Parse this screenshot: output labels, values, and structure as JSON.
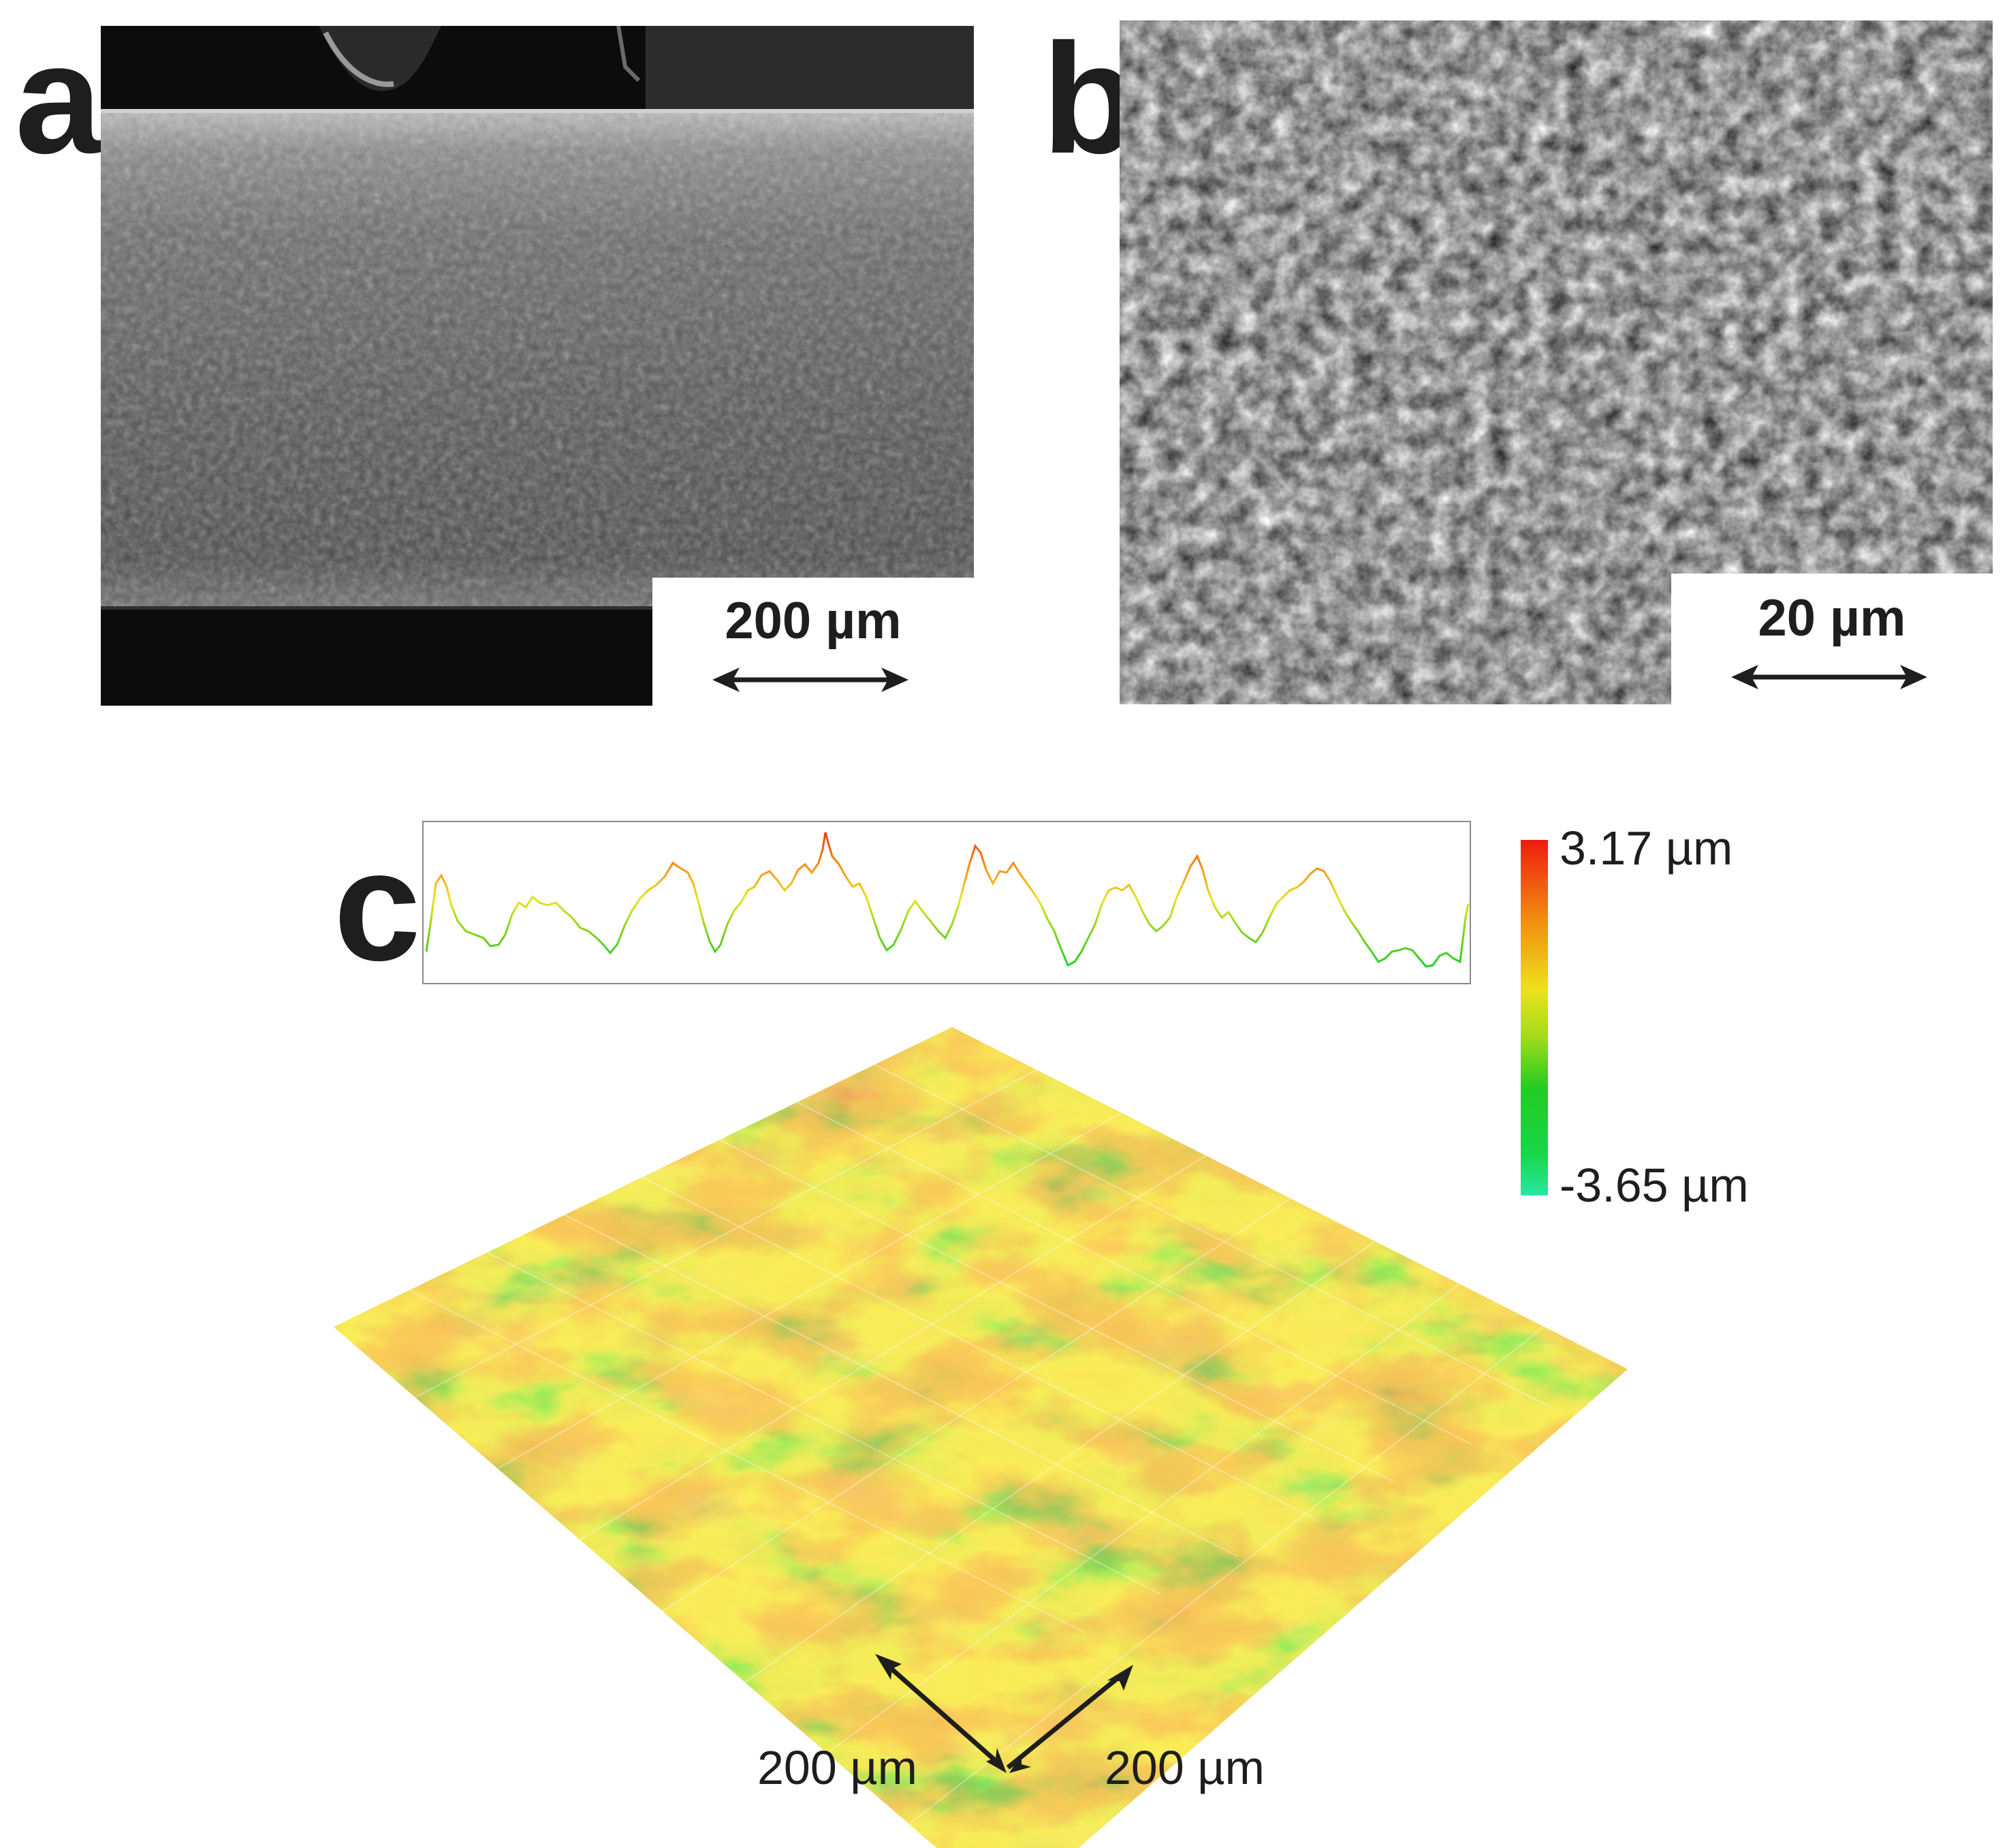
{
  "figure": {
    "panels": {
      "a": {
        "letter": "a",
        "scale_bar": "200 µm",
        "content": "SEM image of fiber"
      },
      "b": {
        "letter": "b",
        "scale_bar": "20 µm",
        "content": "SEM close-up of fiber surface"
      },
      "c": {
        "letter": "c",
        "colorbar_max": "3.17 µm",
        "colorbar_min": "-3.65 µm",
        "axis_label_left": "200 µm",
        "axis_label_right": "200 µm",
        "content": "3D surface topography map with height profile"
      }
    },
    "colors": {
      "high": "#ee1d0f",
      "mid_high": "#f28a10",
      "mid": "#ede21c",
      "mid_low": "#22cc22",
      "low": "#27e8a2",
      "text": "#1e1e1e"
    }
  }
}
